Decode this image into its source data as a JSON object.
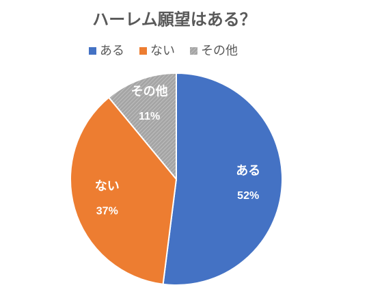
{
  "chart_data": {
    "type": "pie",
    "title": "ハーレム願望はある？",
    "categories": [
      "ある",
      "ない",
      "その他"
    ],
    "values": [
      52,
      37,
      11
    ],
    "value_labels": [
      "52%",
      "37%",
      "11%"
    ],
    "colors": [
      "#4472c4",
      "#ed7d31",
      "#a5a5a5"
    ],
    "legend": "top"
  }
}
